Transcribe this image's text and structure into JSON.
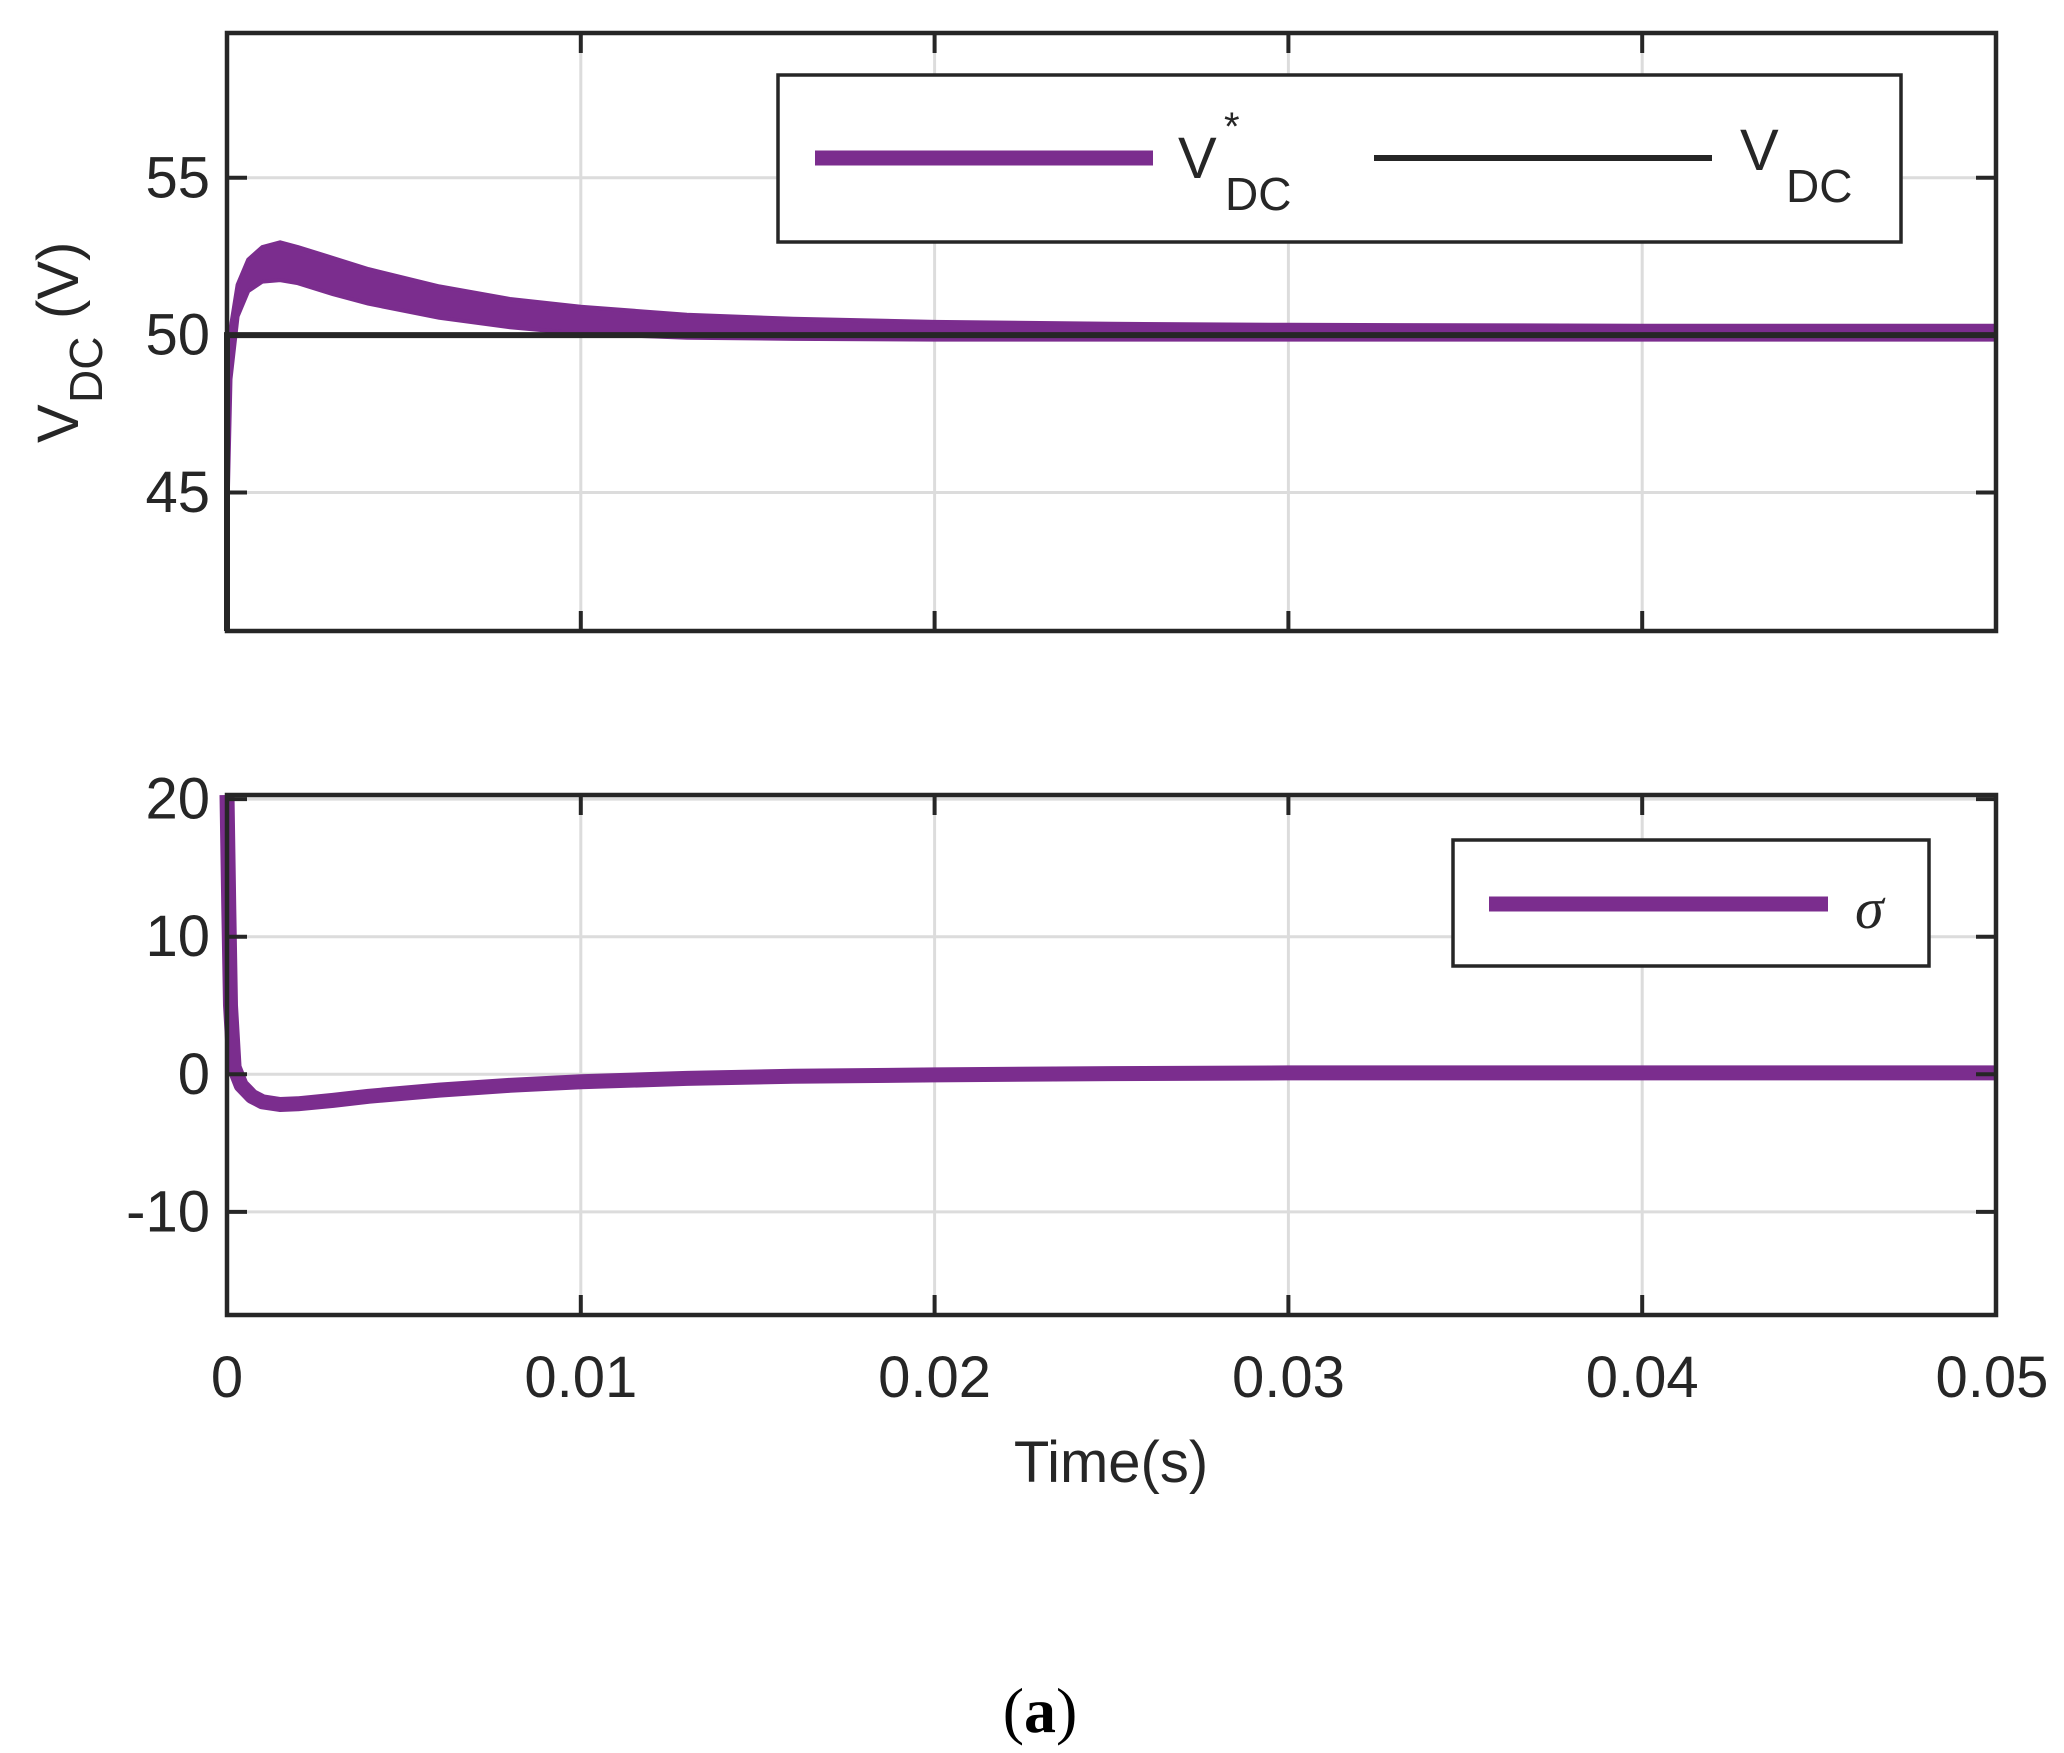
{
  "chart_data": [
    {
      "type": "line",
      "panel": "top",
      "ylabel": "V",
      "ylabel_sub": "DC",
      "ylabel_unit": "(V)",
      "xlabel": "",
      "xlim": [
        0,
        0.05
      ],
      "ylim": [
        40.6,
        59.6
      ],
      "x_ticks": [
        0,
        0.01,
        0.02,
        0.03,
        0.04,
        0.05
      ],
      "y_ticks": [
        45,
        50,
        55
      ],
      "y_tick_labels": [
        "45",
        "50",
        "55"
      ],
      "grid": true,
      "legend_position": "top-right",
      "series": [
        {
          "name": "V",
          "name_sub": "DC",
          "name_sup": "*",
          "color": "#7b2d8e",
          "style": "thick band",
          "band_upper": {
            "x": [
              0,
              0.0001,
              0.0003,
              0.0006,
              0.001,
              0.0015,
              0.002,
              0.003,
              0.004,
              0.006,
              0.008,
              0.01,
              0.013,
              0.016,
              0.02,
              0.025,
              0.03,
              0.04,
              0.05
            ],
            "y": [
              43.8,
              50.2,
              51.6,
              52.4,
              52.8,
              52.95,
              52.8,
              52.45,
              52.1,
              51.55,
              51.15,
              50.9,
              50.65,
              50.52,
              50.42,
              50.36,
              50.33,
              50.3,
              50.3
            ]
          },
          "band_lower": {
            "x": [
              0,
              0.0001,
              0.0003,
              0.0006,
              0.001,
              0.0015,
              0.002,
              0.003,
              0.004,
              0.006,
              0.008,
              0.01,
              0.013,
              0.016,
              0.02,
              0.025,
              0.03,
              0.04,
              0.05
            ],
            "y": [
              43.8,
              48.6,
              50.6,
              51.4,
              51.7,
              51.75,
              51.65,
              51.3,
              51.0,
              50.55,
              50.25,
              50.05,
              49.92,
              49.88,
              49.86,
              49.86,
              49.86,
              49.86,
              49.86
            ]
          }
        },
        {
          "name": "V",
          "name_sub": "DC",
          "color": "#262626",
          "style": "line",
          "x": [
            0,
            1e-07,
            0.0002,
            0.05
          ],
          "y": [
            40.6,
            50.0,
            50.0,
            50.0
          ]
        }
      ]
    },
    {
      "type": "line",
      "panel": "bottom",
      "ylabel": "",
      "xlabel": "Time(s)",
      "xlim": [
        0,
        0.05
      ],
      "ylim": [
        -17.5,
        20.3
      ],
      "x_ticks": [
        0,
        0.01,
        0.02,
        0.03,
        0.04,
        0.05
      ],
      "x_tick_labels": [
        "0",
        "0.01",
        "0.02",
        "0.03",
        "0.04",
        "0.05"
      ],
      "y_ticks": [
        -10,
        0,
        10,
        20
      ],
      "y_tick_labels": [
        "-10",
        "0",
        "10",
        "20"
      ],
      "grid": true,
      "legend_position": "top-right",
      "series": [
        {
          "name": "σ",
          "color": "#7b2d8e",
          "style": "line",
          "x": [
            0,
            5e-05,
            0.0001,
            0.0002,
            0.0004,
            0.0007,
            0.001,
            0.0015,
            0.002,
            0.003,
            0.004,
            0.006,
            0.008,
            0.01,
            0.013,
            0.016,
            0.02,
            0.025,
            0.03,
            0.04,
            0.05
          ],
          "y": [
            20.3,
            12.0,
            5.0,
            0.5,
            -0.8,
            -1.6,
            -2.0,
            -2.2,
            -2.15,
            -1.9,
            -1.6,
            -1.15,
            -0.8,
            -0.55,
            -0.3,
            -0.15,
            -0.05,
            0.05,
            0.1,
            0.1,
            0.1
          ]
        }
      ]
    }
  ],
  "caption": {
    "open": "(",
    "letter": "a",
    "close": ")"
  }
}
